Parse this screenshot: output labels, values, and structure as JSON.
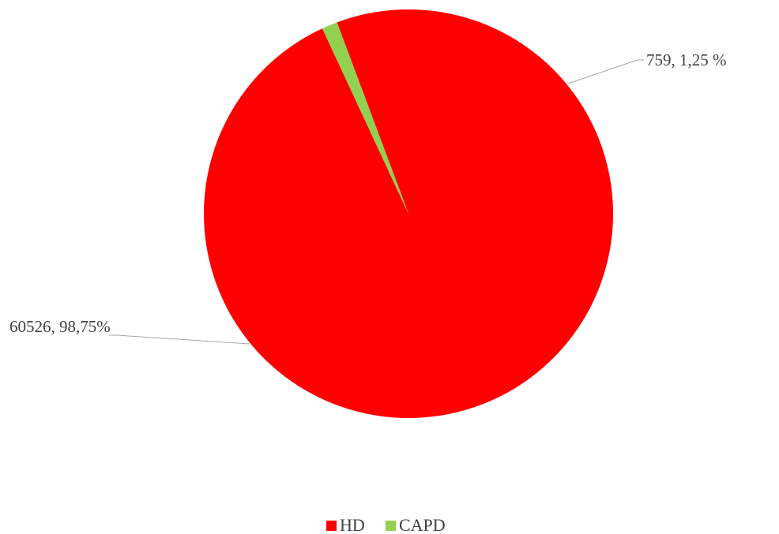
{
  "chart_data": {
    "type": "pie",
    "title": "",
    "slices": [
      {
        "label": "HD",
        "value": 60526,
        "percent_text": "98,75%",
        "data_label": "60526, 98,75%",
        "color": "#ff0000"
      },
      {
        "label": "CAPD",
        "value": 759,
        "percent_text": "1,25 %",
        "data_label": "759, 1,25 %",
        "color": "#92d050"
      }
    ],
    "legend": {
      "position": "bottom",
      "items": [
        "HD",
        "CAPD"
      ]
    },
    "leader_line_color": "#a6a6a6"
  }
}
